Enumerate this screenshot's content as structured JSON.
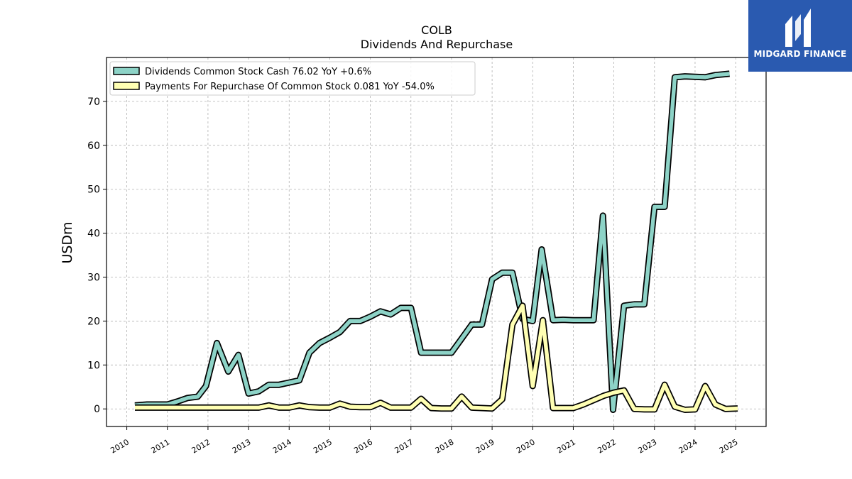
{
  "logo": {
    "text": "MIDGARD FINANCE"
  },
  "chart_data": {
    "type": "line",
    "title": "COLB",
    "subtitle": "Dividends And Repurchase",
    "ylabel": "USDm",
    "xlabel": "",
    "xlim": [
      2009.5,
      2025.75
    ],
    "ylim": [
      -4,
      80
    ],
    "yticks": [
      0,
      10,
      20,
      30,
      40,
      50,
      60,
      70
    ],
    "xticks": [
      "2010",
      "2011",
      "2012",
      "2013",
      "2014",
      "2015",
      "2016",
      "2017",
      "2018",
      "2019",
      "2020",
      "2021",
      "2022",
      "2023",
      "2024",
      "2025"
    ],
    "grid": true,
    "legend_position": "top-left",
    "series": [
      {
        "name": "Dividends Common Stock Cash",
        "legend": "Dividends Common Stock Cash  76.02 YoY +0.6%",
        "color": "#8dd3c7",
        "points": [
          [
            2010.2,
            0.8
          ],
          [
            2010.5,
            1.0
          ],
          [
            2010.75,
            1.0
          ],
          [
            2011.0,
            1.0
          ],
          [
            2011.25,
            1.7
          ],
          [
            2011.5,
            2.5
          ],
          [
            2011.75,
            2.8
          ],
          [
            2011.95,
            5.2
          ],
          [
            2012.22,
            15.0
          ],
          [
            2012.5,
            8.5
          ],
          [
            2012.75,
            12.3
          ],
          [
            2013.0,
            3.5
          ],
          [
            2013.25,
            4.0
          ],
          [
            2013.5,
            5.5
          ],
          [
            2013.75,
            5.5
          ],
          [
            2014.0,
            6.0
          ],
          [
            2014.25,
            6.5
          ],
          [
            2014.5,
            12.8
          ],
          [
            2014.75,
            15.0
          ],
          [
            2015.0,
            16.2
          ],
          [
            2015.25,
            17.5
          ],
          [
            2015.5,
            20.0
          ],
          [
            2015.75,
            20.0
          ],
          [
            2016.0,
            21.0
          ],
          [
            2016.25,
            22.2
          ],
          [
            2016.5,
            21.5
          ],
          [
            2016.75,
            23.0
          ],
          [
            2017.0,
            23.0
          ],
          [
            2017.25,
            12.8
          ],
          [
            2017.5,
            12.8
          ],
          [
            2017.75,
            12.8
          ],
          [
            2018.0,
            12.8
          ],
          [
            2018.25,
            16.0
          ],
          [
            2018.5,
            19.2
          ],
          [
            2018.75,
            19.2
          ],
          [
            2019.0,
            29.5
          ],
          [
            2019.25,
            31.0
          ],
          [
            2019.5,
            31.0
          ],
          [
            2019.75,
            20.5
          ],
          [
            2020.0,
            20.0
          ],
          [
            2020.22,
            36.3
          ],
          [
            2020.5,
            20.2
          ],
          [
            2020.75,
            20.3
          ],
          [
            2021.0,
            20.2
          ],
          [
            2021.25,
            20.2
          ],
          [
            2021.5,
            20.2
          ],
          [
            2021.73,
            44.0
          ],
          [
            2021.98,
            -0.2
          ],
          [
            2022.25,
            23.5
          ],
          [
            2022.5,
            23.8
          ],
          [
            2022.75,
            23.8
          ],
          [
            2023.0,
            46.0
          ],
          [
            2023.25,
            46.0
          ],
          [
            2023.5,
            75.5
          ],
          [
            2023.75,
            75.7
          ],
          [
            2024.0,
            75.6
          ],
          [
            2024.25,
            75.5
          ],
          [
            2024.5,
            76.0
          ],
          [
            2024.85,
            76.3
          ]
        ]
      },
      {
        "name": "Payments For Repurchase Of Common Stock",
        "legend": "Payments For Repurchase Of Common Stock  0.081 YoY -54.0%",
        "color": "#ffffb3",
        "points": [
          [
            2010.2,
            0.3
          ],
          [
            2010.75,
            0.3
          ],
          [
            2011.25,
            0.3
          ],
          [
            2011.75,
            0.3
          ],
          [
            2012.25,
            0.3
          ],
          [
            2012.75,
            0.3
          ],
          [
            2013.0,
            0.3
          ],
          [
            2013.25,
            0.3
          ],
          [
            2013.5,
            0.8
          ],
          [
            2013.75,
            0.3
          ],
          [
            2014.0,
            0.3
          ],
          [
            2014.25,
            0.8
          ],
          [
            2014.5,
            0.4
          ],
          [
            2014.75,
            0.3
          ],
          [
            2015.0,
            0.3
          ],
          [
            2015.25,
            1.2
          ],
          [
            2015.5,
            0.5
          ],
          [
            2015.75,
            0.4
          ],
          [
            2016.0,
            0.4
          ],
          [
            2016.25,
            1.4
          ],
          [
            2016.5,
            0.3
          ],
          [
            2016.75,
            0.3
          ],
          [
            2017.0,
            0.3
          ],
          [
            2017.25,
            2.3
          ],
          [
            2017.5,
            0.2
          ],
          [
            2017.75,
            0.1
          ],
          [
            2018.0,
            0.1
          ],
          [
            2018.25,
            2.8
          ],
          [
            2018.5,
            0.3
          ],
          [
            2018.75,
            0.2
          ],
          [
            2019.0,
            0.1
          ],
          [
            2019.25,
            2.2
          ],
          [
            2019.5,
            19.2
          ],
          [
            2019.75,
            23.5
          ],
          [
            2020.0,
            5.2
          ],
          [
            2020.25,
            20.2
          ],
          [
            2020.5,
            0.2
          ],
          [
            2020.75,
            0.2
          ],
          [
            2021.0,
            0.2
          ],
          [
            2021.25,
            1.0
          ],
          [
            2021.5,
            2.0
          ],
          [
            2021.75,
            3.0
          ],
          [
            2022.0,
            3.7
          ],
          [
            2022.25,
            4.2
          ],
          [
            2022.5,
            0.0
          ],
          [
            2022.75,
            -0.1
          ],
          [
            2023.0,
            -0.1
          ],
          [
            2023.25,
            5.5
          ],
          [
            2023.5,
            0.5
          ],
          [
            2023.75,
            -0.2
          ],
          [
            2024.0,
            -0.1
          ],
          [
            2024.25,
            5.2
          ],
          [
            2024.5,
            1.0
          ],
          [
            2024.75,
            0.0
          ],
          [
            2025.05,
            0.1
          ]
        ]
      }
    ]
  }
}
